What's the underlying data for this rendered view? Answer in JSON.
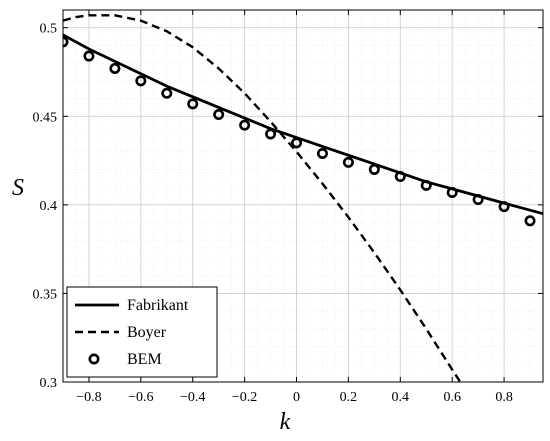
{
  "chart_data": {
    "type": "line",
    "title": "",
    "xlabel": "k",
    "ylabel": "S",
    "xlim": [
      -0.9,
      0.95
    ],
    "ylim": [
      0.3,
      0.51
    ],
    "x_ticks": [
      -0.8,
      -0.6,
      -0.4,
      -0.2,
      0,
      0.2,
      0.4,
      0.6,
      0.8
    ],
    "x_tick_labels": [
      "−0.8",
      "−0.6",
      "−0.4",
      "−0.2",
      "0",
      "0.2",
      "0.4",
      "0.6",
      "0.8"
    ],
    "y_ticks": [
      0.3,
      0.35,
      0.4,
      0.45,
      0.5
    ],
    "y_tick_labels": [
      "0.3",
      "0.35",
      "0.4",
      "0.45",
      "0.5"
    ],
    "grid": true,
    "minor_grid": true,
    "legend_position": "bottom-left",
    "series": [
      {
        "name": "Fabrikant",
        "style": "solid",
        "x": [
          -0.9,
          -0.8,
          -0.7,
          -0.6,
          -0.5,
          -0.4,
          -0.3,
          -0.2,
          -0.1,
          0,
          0.1,
          0.2,
          0.3,
          0.4,
          0.5,
          0.6,
          0.7,
          0.8,
          0.9,
          0.95
        ],
        "y": [
          0.496,
          0.488,
          0.481,
          0.474,
          0.467,
          0.461,
          0.455,
          0.449,
          0.443,
          0.438,
          0.433,
          0.428,
          0.423,
          0.418,
          0.413,
          0.409,
          0.405,
          0.401,
          0.397,
          0.395
        ]
      },
      {
        "name": "Boyer",
        "style": "dashed",
        "x": [
          -0.9,
          -0.85,
          -0.8,
          -0.75,
          -0.7,
          -0.6,
          -0.5,
          -0.4,
          -0.3,
          -0.2,
          -0.1,
          0,
          0.1,
          0.2,
          0.3,
          0.4,
          0.5,
          0.6,
          0.64
        ],
        "y": [
          0.504,
          0.506,
          0.507,
          0.507,
          0.507,
          0.504,
          0.498,
          0.489,
          0.477,
          0.463,
          0.447,
          0.43,
          0.412,
          0.393,
          0.373,
          0.352,
          0.33,
          0.307,
          0.298
        ]
      },
      {
        "name": "BEM",
        "style": "markers",
        "marker": "circle",
        "x": [
          -0.9,
          -0.8,
          -0.7,
          -0.6,
          -0.5,
          -0.4,
          -0.3,
          -0.2,
          -0.1,
          0,
          0.1,
          0.2,
          0.3,
          0.4,
          0.5,
          0.6,
          0.7,
          0.8,
          0.9
        ],
        "y": [
          0.492,
          0.484,
          0.477,
          0.47,
          0.463,
          0.457,
          0.451,
          0.445,
          0.44,
          0.435,
          0.429,
          0.424,
          0.42,
          0.416,
          0.411,
          0.407,
          0.403,
          0.399,
          0.391
        ]
      }
    ],
    "colors": {
      "line": "#000000",
      "grid_major": "#cfcfcf",
      "grid_minor": "#e6e6e6",
      "background": "#ffffff"
    }
  }
}
